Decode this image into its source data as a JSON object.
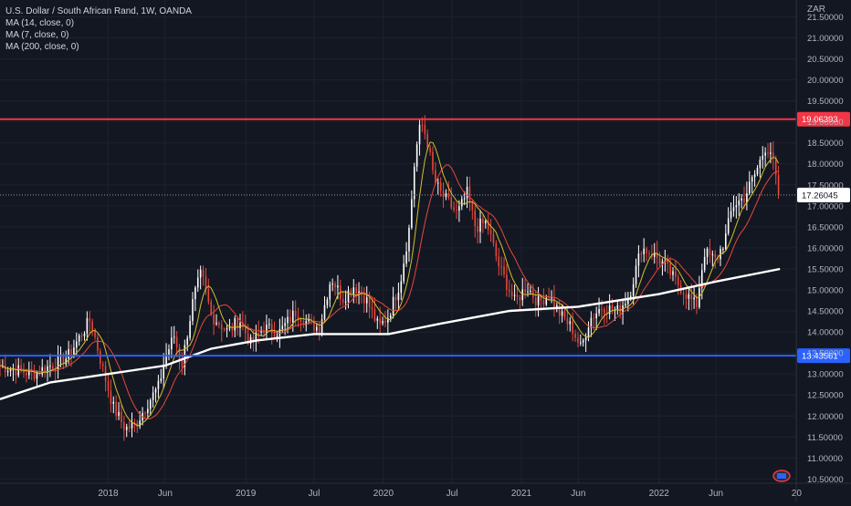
{
  "legend": {
    "symbol_line": "U.S. Dollar / South African Rand, 1W, OANDA",
    "ma_lines": [
      "MA (14, close, 0)",
      "MA (7, close, 0)",
      "MA (200, close, 0)"
    ]
  },
  "axis_currency": "ZAR",
  "chart_data": {
    "type": "candlestick",
    "title": "U.S. Dollar / South African Rand, 1W, OANDA",
    "ylim": [
      10.4,
      21.9
    ],
    "y_ticks": [
      "21.50000",
      "21.00000",
      "20.50000",
      "20.00000",
      "19.50000",
      "19.00000",
      "18.50000",
      "18.00000",
      "17.50000",
      "17.00000",
      "16.50000",
      "16.00000",
      "15.50000",
      "15.00000",
      "14.50000",
      "14.00000",
      "13.50000",
      "13.00000",
      "12.50000",
      "12.00000",
      "11.50000",
      "11.00000",
      "10.50000"
    ],
    "x_ticks": [
      "2018",
      "Jun",
      "2019",
      "Jul",
      "2020",
      "Jul",
      "2021",
      "Jun",
      "2022",
      "Jun",
      "20"
    ],
    "x_tick_dates": [
      "2018-01-01",
      "2018-06-01",
      "2019-01-01",
      "2019-07-01",
      "2020-01-01",
      "2020-07-01",
      "2021-01-01",
      "2021-06-01",
      "2022-01-01",
      "2022-06-01",
      "2023-01-01"
    ],
    "x_range": [
      "2017-03-20",
      "2022-12-31"
    ],
    "price_path": [
      [
        "2017-03-20",
        13.2
      ],
      [
        "2017-05-01",
        13.1
      ],
      [
        "2017-06-15",
        13.0
      ],
      [
        "2017-08-01",
        13.2
      ],
      [
        "2017-09-15",
        13.4
      ],
      [
        "2017-11-01",
        14.1
      ],
      [
        "2017-11-15",
        14.3
      ],
      [
        "2017-12-15",
        13.2
      ],
      [
        "2018-01-15",
        12.2
      ],
      [
        "2018-02-15",
        11.7
      ],
      [
        "2018-03-15",
        11.8
      ],
      [
        "2018-04-15",
        12.3
      ],
      [
        "2018-05-15",
        12.7
      ],
      [
        "2018-06-01",
        13.4
      ],
      [
        "2018-06-25",
        13.9
      ],
      [
        "2018-07-15",
        13.2
      ],
      [
        "2018-08-15",
        14.8
      ],
      [
        "2018-09-05",
        15.4
      ],
      [
        "2018-10-01",
        14.4
      ],
      [
        "2018-11-15",
        14.0
      ],
      [
        "2018-12-15",
        14.3
      ],
      [
        "2019-01-15",
        13.7
      ],
      [
        "2019-02-15",
        14.1
      ],
      [
        "2019-04-01",
        14.0
      ],
      [
        "2019-05-15",
        14.5
      ],
      [
        "2019-06-15",
        14.2
      ],
      [
        "2019-07-15",
        14.1
      ],
      [
        "2019-08-15",
        15.3
      ],
      [
        "2019-09-15",
        14.8
      ],
      [
        "2019-10-15",
        15.1
      ],
      [
        "2019-11-15",
        14.8
      ],
      [
        "2019-12-20",
        14.1
      ],
      [
        "2020-01-15",
        14.4
      ],
      [
        "2020-02-15",
        15.2
      ],
      [
        "2020-03-10",
        16.5
      ],
      [
        "2020-03-25",
        18.2
      ],
      [
        "2020-04-10",
        19.0
      ],
      [
        "2020-04-25",
        18.6
      ],
      [
        "2020-05-15",
        17.6
      ],
      [
        "2020-06-01",
        17.3
      ],
      [
        "2020-06-20",
        17.1
      ],
      [
        "2020-07-15",
        16.8
      ],
      [
        "2020-08-10",
        17.3
      ],
      [
        "2020-09-01",
        16.5
      ],
      [
        "2020-10-01",
        16.6
      ],
      [
        "2020-11-01",
        15.6
      ],
      [
        "2020-12-15",
        14.7
      ],
      [
        "2021-01-15",
        15.1
      ],
      [
        "2021-02-15",
        14.7
      ],
      [
        "2021-03-15",
        14.9
      ],
      [
        "2021-04-15",
        14.4
      ],
      [
        "2021-05-15",
        14.1
      ],
      [
        "2021-06-08",
        13.6
      ],
      [
        "2021-07-01",
        14.3
      ],
      [
        "2021-08-01",
        14.6
      ],
      [
        "2021-09-15",
        14.5
      ],
      [
        "2021-10-15",
        14.9
      ],
      [
        "2021-11-15",
        16.0
      ],
      [
        "2021-12-10",
        15.9
      ],
      [
        "2022-01-15",
        15.6
      ],
      [
        "2022-02-15",
        15.2
      ],
      [
        "2022-03-15",
        14.9
      ],
      [
        "2022-04-10",
        14.6
      ],
      [
        "2022-05-01",
        15.9
      ],
      [
        "2022-06-01",
        15.7
      ],
      [
        "2022-06-25",
        16.2
      ],
      [
        "2022-07-15",
        17.0
      ],
      [
        "2022-08-15",
        17.2
      ],
      [
        "2022-09-15",
        17.8
      ],
      [
        "2022-10-10",
        18.4
      ],
      [
        "2022-10-25",
        18.3
      ],
      [
        "2022-11-08",
        17.6
      ],
      [
        "2022-11-18",
        17.26
      ]
    ],
    "ma200_path": [
      [
        "2017-03-20",
        12.4
      ],
      [
        "2017-08-01",
        12.8
      ],
      [
        "2018-01-01",
        13.0
      ],
      [
        "2018-06-01",
        13.2
      ],
      [
        "2018-10-01",
        13.6
      ],
      [
        "2019-02-01",
        13.8
      ],
      [
        "2019-07-01",
        13.95
      ],
      [
        "2020-01-15",
        13.95
      ],
      [
        "2020-06-01",
        14.2
      ],
      [
        "2020-12-01",
        14.5
      ],
      [
        "2021-06-01",
        14.6
      ],
      [
        "2022-01-01",
        14.9
      ],
      [
        "2022-06-01",
        15.2
      ],
      [
        "2022-11-18",
        15.5
      ]
    ],
    "series": [
      {
        "name": "MA (14, close, 0)",
        "color": "#e8473b"
      },
      {
        "name": "MA (7, close, 0)",
        "color": "#d4c02a"
      },
      {
        "name": "MA (200, close, 0)",
        "color": "#ffffff"
      }
    ],
    "horizontal_levels": [
      {
        "value": 19.06393,
        "label": "19.06393",
        "color": "#f23645"
      },
      {
        "value": 13.43561,
        "label": "13.43561",
        "color": "#2962ff"
      }
    ],
    "last_price": {
      "value": 17.26045,
      "label": "17.26045"
    },
    "colors": {
      "up": "#ffffff",
      "down": "#e8473b",
      "background": "#131722",
      "grid": "#1e222d"
    }
  }
}
